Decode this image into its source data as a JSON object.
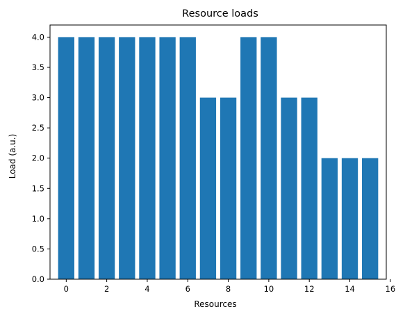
{
  "chart_data": {
    "type": "bar",
    "title": "Resource loads",
    "xlabel": "Resources",
    "ylabel": "Load (a.u.)",
    "categories": [
      0,
      1,
      2,
      3,
      4,
      5,
      6,
      7,
      8,
      9,
      10,
      11,
      12,
      13,
      14,
      15
    ],
    "values": [
      4,
      4,
      4,
      4,
      4,
      4,
      4,
      3,
      3,
      4,
      4,
      3,
      3,
      2,
      2,
      2
    ],
    "xlim": [
      -0.8,
      15.8
    ],
    "ylim": [
      0,
      4.2
    ],
    "xticks": [
      0,
      2,
      4,
      6,
      8,
      10,
      12,
      14,
      16
    ],
    "xtick_labels": [
      "0",
      "2",
      "4",
      "6",
      "8",
      "10",
      "12",
      "14",
      "16"
    ],
    "yticks": [
      0.0,
      0.5,
      1.0,
      1.5,
      2.0,
      2.5,
      3.0,
      3.5,
      4.0
    ],
    "ytick_labels": [
      "0.0",
      "0.5",
      "1.0",
      "1.5",
      "2.0",
      "2.5",
      "3.0",
      "3.5",
      "4.0"
    ],
    "bar_color": "#1f77b4",
    "grid": false,
    "legend": "none"
  }
}
